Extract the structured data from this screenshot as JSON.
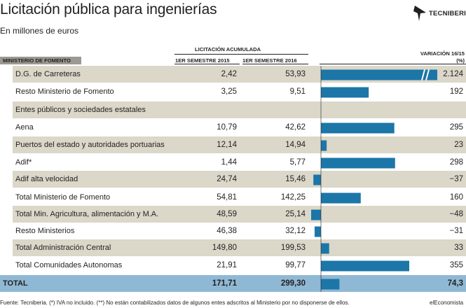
{
  "header": {
    "title": "Licitación pública para ingenierías",
    "subtitle": "En millones de euros",
    "brand": "TECNIBERIA"
  },
  "columns": {
    "section": "MINISTERIO DE FOMENTO",
    "group": "LICITACIÓN ACUMULADA",
    "col1": "1ER SEMESTRE 2015",
    "col2": "1ER SEMESTRE 2016",
    "variation": "VARIACIÓN 16/15",
    "variation_unit": "(%)"
  },
  "colors": {
    "bar": "#1c76a8",
    "band_dark": "#dbd7c9",
    "band_light": "#ffffff",
    "total_band": "#8fb8d4",
    "section_band": "#9c9892"
  },
  "chart_data": {
    "type": "table",
    "bar_scale_max": 355,
    "rows": [
      {
        "label": "D.G. de Carreteras",
        "v2015": "2,42",
        "v2016": "53,93",
        "var_label": "2.124",
        "var": 2124,
        "truncated": true,
        "kind": "item"
      },
      {
        "label": "Resto Ministerio de Fomento",
        "v2015": "3,25",
        "v2016": "9,51",
        "var_label": "192",
        "var": 192,
        "kind": "item"
      },
      {
        "label": "Entes públicos y sociedades estatales",
        "kind": "group"
      },
      {
        "label": "Aena",
        "v2015": "10,79",
        "v2016": "42,62",
        "var_label": "295",
        "var": 295,
        "kind": "item"
      },
      {
        "label": "Puertos del estado y autoridades portuarias",
        "v2015": "12,14",
        "v2016": "14,94",
        "var_label": "23",
        "var": 23,
        "kind": "item"
      },
      {
        "label": "Adif*",
        "v2015": "1,44",
        "v2016": "5,77",
        "var_label": "298",
        "var": 298,
        "kind": "item"
      },
      {
        "label": "Adif alta velocidad",
        "v2015": "24,74",
        "v2016": "15,46",
        "var_label": "−37",
        "var": -37,
        "kind": "item"
      },
      {
        "label": "Total Ministerio de Fomento",
        "v2015": "54,81",
        "v2016": "142,25",
        "var_label": "160",
        "var": 160,
        "kind": "item"
      },
      {
        "label": "Total Min. Agricultura, alimentación y M.A.",
        "v2015": "48,59",
        "v2016": "25,14",
        "var_label": "−48",
        "var": -48,
        "kind": "item"
      },
      {
        "label": "Resto Ministerios",
        "v2015": "46,38",
        "v2016": "32,12",
        "var_label": "−31",
        "var": -31,
        "kind": "item"
      },
      {
        "label": "Total Administración Central",
        "v2015": "149,80",
        "v2016": "199,53",
        "var_label": "33",
        "var": 33,
        "kind": "item"
      },
      {
        "label": "Total Comunidades Autonomas",
        "v2015": "21,91",
        "v2016": "99,77",
        "var_label": "355",
        "var": 355,
        "kind": "item"
      },
      {
        "label": "TOTAL",
        "v2015": "171,71",
        "v2016": "299,30",
        "var_label": "74,3",
        "var": 74.3,
        "kind": "total"
      }
    ]
  },
  "footer": {
    "source": "Fuente: Tecniberia. (*) IVA no incluido. (**) No están contabilizados datos de algunos entes adscritos al Ministerio por no disponerse de ellos.",
    "brand": "elEconomista"
  }
}
